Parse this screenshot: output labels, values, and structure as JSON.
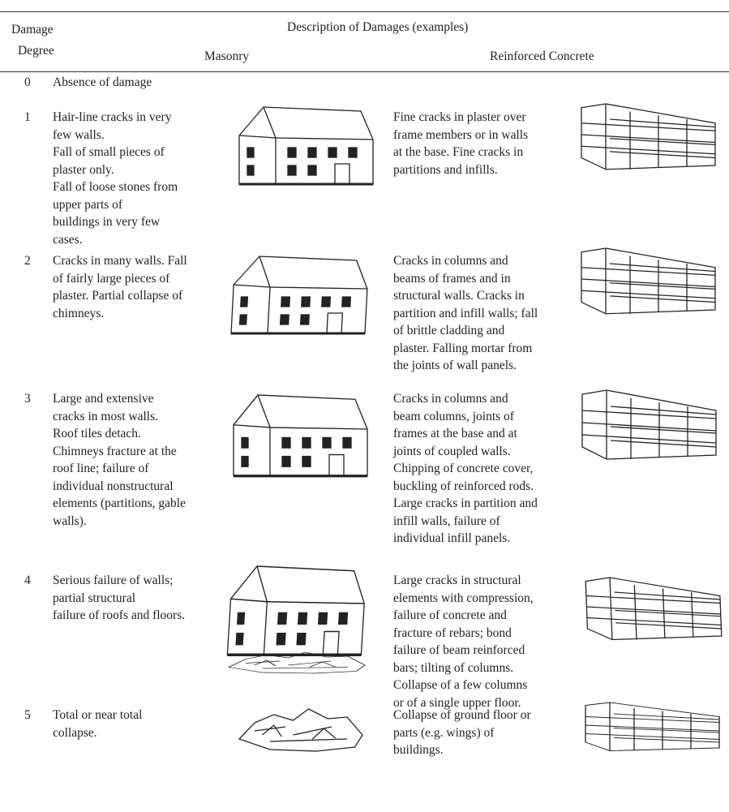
{
  "header": {
    "damage": "Damage",
    "degree": "Degree",
    "description": "Description of Damages (examples)",
    "masonry": "Masonry",
    "concrete": "Reinforced Concrete"
  },
  "rows": [
    {
      "grade": "0",
      "masonry": [
        "Absence of damage"
      ]
    },
    {
      "grade": "1",
      "masonry": [
        "Hair-line cracks in very",
        "few walls.",
        "Fall of small pieces of",
        "plaster only.",
        "Fall of loose stones from",
        "upper parts of",
        "buildings in very few",
        "cases."
      ],
      "concrete": [
        "Fine cracks in plaster over",
        "frame members or in walls",
        "at the base. Fine cracks in",
        "partitions and infills."
      ]
    },
    {
      "grade": "2",
      "masonry": [
        "Cracks in many walls. Fall",
        "of fairly large pieces of",
        "plaster. Partial collapse of",
        "chimneys."
      ],
      "concrete": [
        "Cracks in columns and",
        "beams of frames and in",
        "structural walls. Cracks in",
        "partition and infill walls; fall",
        "of brittle cladding and",
        "plaster. Falling mortar from",
        "the joints of wall panels."
      ]
    },
    {
      "grade": "3",
      "masonry": [
        "Large and extensive",
        "cracks in most walls.",
        "Roof tiles detach.",
        "Chimneys fracture at the",
        "roof line; failure of",
        "individual nonstructural",
        "elements (partitions, gable",
        "walls)."
      ],
      "concrete": [
        "Cracks in columns and",
        "beam columns, joints of",
        "frames at the base and at",
        "joints of coupled walls.",
        "Chipping of concrete cover,",
        "buckling of reinforced rods.",
        "Large cracks in partition and",
        "infill walls, failure of",
        "individual infill panels."
      ]
    },
    {
      "grade": "4",
      "masonry": [
        "Serious failure of walls;",
        "partial structural",
        "failure of roofs and floors."
      ],
      "concrete": [
        "Large cracks in structural",
        "elements with compression,",
        "failure of concrete and",
        "fracture of rebars; bond",
        "failure of beam reinforced",
        "bars; tilting of columns.",
        "Collapse of a few columns",
        "or of a single upper floor."
      ]
    },
    {
      "grade": "5",
      "masonry": [
        "Total or near total",
        "collapse."
      ],
      "concrete": [
        "Collapse of ground floor or",
        "parts (e.g. wings) of",
        "buildings."
      ]
    }
  ]
}
